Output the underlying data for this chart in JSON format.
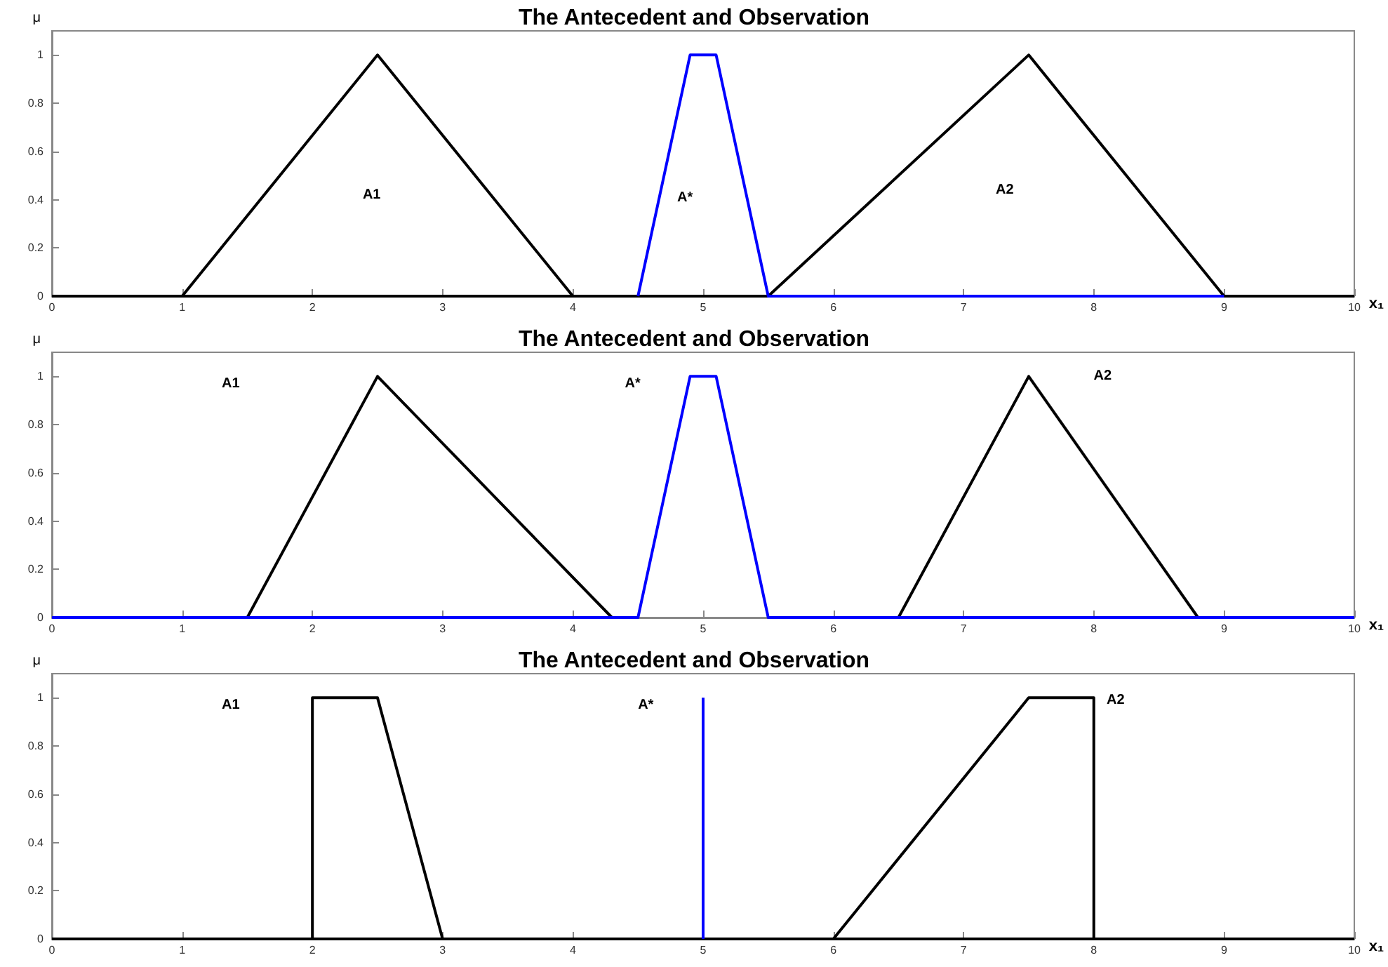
{
  "chart_data": [
    {
      "type": "line",
      "title": "The Antecedent and Observation",
      "xlabel": "x₁",
      "ylabel": "μ",
      "xlim": [
        0,
        10
      ],
      "ylim": [
        0,
        1.1
      ],
      "xticks": [
        0,
        1,
        2,
        3,
        4,
        5,
        6,
        7,
        8,
        9,
        10
      ],
      "yticks": [
        0,
        0.2,
        0.4,
        0.6,
        0.8,
        1
      ],
      "marker": "none",
      "line_style": "solid",
      "series": [
        {
          "color": "#000000",
          "x": [
            0,
            1,
            2.5,
            4,
            10
          ],
          "values": [
            0,
            0,
            1,
            0,
            0
          ]
        },
        {
          "color": "#000000",
          "x": [
            0,
            5.5,
            7.5,
            9,
            10
          ],
          "values": [
            0,
            0,
            1,
            0,
            0
          ]
        },
        {
          "color": "#0000ff",
          "x": [
            4.5,
            4.9,
            5.1,
            5.5,
            9
          ],
          "values": [
            0,
            1,
            1,
            0,
            0
          ]
        }
      ],
      "annotations": [
        "A1",
        "A*",
        "A2"
      ]
    },
    {
      "type": "line",
      "title": "The Antecedent and Observation",
      "xlabel": "x₁",
      "ylabel": "μ",
      "xlim": [
        0,
        10
      ],
      "ylim": [
        0,
        1.1
      ],
      "xticks": [
        0,
        1,
        2,
        3,
        4,
        5,
        6,
        7,
        8,
        9,
        10
      ],
      "yticks": [
        0,
        0.2,
        0.4,
        0.6,
        0.8,
        1
      ],
      "marker": "none",
      "line_style": "solid",
      "series": [
        {
          "color": "#000000",
          "x": [
            1.5,
            2.5,
            4.3
          ],
          "values": [
            0,
            1,
            0
          ]
        },
        {
          "color": "#000000",
          "x": [
            6.5,
            7.5,
            8.8
          ],
          "values": [
            0,
            1,
            0
          ]
        },
        {
          "color": "#0000ff",
          "x": [
            0,
            4.5,
            4.9,
            5.1,
            5.5,
            10
          ],
          "values": [
            0,
            0,
            1,
            1,
            0,
            0
          ]
        }
      ],
      "annotations": [
        "A1",
        "A*",
        "A2"
      ]
    },
    {
      "type": "line",
      "title": "The Antecedent and Observation",
      "xlabel": "x₁",
      "ylabel": "μ",
      "xlim": [
        0,
        10
      ],
      "ylim": [
        0,
        1.1
      ],
      "xticks": [
        0,
        1,
        2,
        3,
        4,
        5,
        6,
        7,
        8,
        9,
        10
      ],
      "yticks": [
        0,
        0.2,
        0.4,
        0.6,
        0.8,
        1
      ],
      "marker": "none",
      "line_style": "solid",
      "series": [
        {
          "color": "#000000",
          "x": [
            0,
            2,
            2,
            2.5,
            3,
            10
          ],
          "values": [
            0,
            0,
            1,
            1,
            0,
            0
          ]
        },
        {
          "color": "#000000",
          "x": [
            0,
            6,
            7.5,
            8,
            8,
            10
          ],
          "values": [
            0,
            0,
            1,
            1,
            0,
            0
          ]
        },
        {
          "color": "#0000ff",
          "x": [
            5,
            5
          ],
          "values": [
            0,
            1
          ]
        }
      ],
      "annotations": [
        "A1",
        "A*",
        "A2"
      ]
    }
  ]
}
